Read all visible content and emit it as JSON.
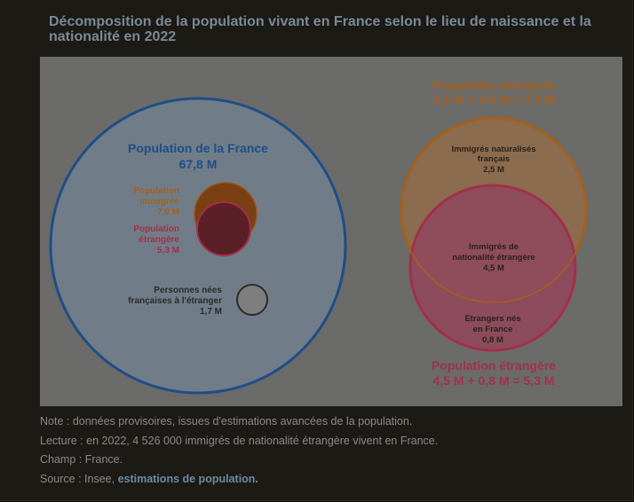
{
  "page": {
    "title": "Décomposition de la population vivant en France selon le lieu de naissance et la nationalité en 2022"
  },
  "figure": {
    "left": {
      "big_label_1": "Population de la France",
      "big_label_2": "67,8 M",
      "immigree_1": "Population",
      "immigree_2": "immigrée",
      "immigree_3": "7,0 M",
      "etrangere_1": "Population",
      "etrangere_2": "étrangère",
      "etrangere_3": "5,3 M",
      "francais_1": "Personnes nées",
      "francais_2": "françaises à l'étranger",
      "francais_3": "1,7 M"
    },
    "right": {
      "imm_title_1": "Population immigrée",
      "imm_title_2": "2,5 M + 4,5 M = 7,0 M",
      "nat_1": "Immigrés naturalisés",
      "nat_2": "français",
      "nat_3": "2,5 M",
      "inter_1": "Immigrés de",
      "inter_2": "nationalité étrangère",
      "inter_3": "4,5 M",
      "etr_1": "Etrangers nés",
      "etr_2": "en France",
      "etr_3": "0,8 M",
      "etr_title_1": "Population étrangère",
      "etr_title_2": "4,5 M + 0,8 M = 5,3 M"
    },
    "colors": {
      "france": "#1f4e86",
      "immigree": "#b0651a",
      "etrangere": "#b63a58",
      "francais_etranger": "#8a8a8a"
    }
  },
  "notes": {
    "note": "Note : données provisoires, issues d'estimations avancées de la population.",
    "lecture": "Lecture : en 2022, 4 526 000 immigrés de nationalité étrangère vivent en France.",
    "champ": "Champ : France.",
    "source_prefix": "Source : Insee, ",
    "source_link": "estimations de population."
  }
}
